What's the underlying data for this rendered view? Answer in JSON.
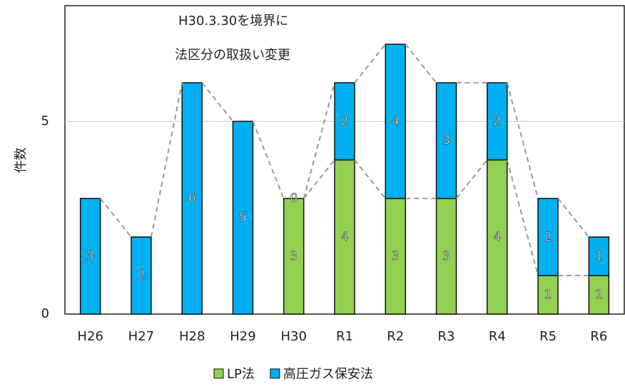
{
  "chart_data": {
    "type": "stacked_bar",
    "annotations": [
      "H30.3.30を境界に",
      "法区分の取扱い変更"
    ],
    "ylabel": "件数",
    "categories": [
      "H26",
      "H27",
      "H28",
      "H29",
      "H30",
      "R1",
      "R2",
      "R3",
      "R4",
      "R5",
      "R6"
    ],
    "series": [
      {
        "name": "LP法",
        "color": "#92d050",
        "values": [
          null,
          null,
          null,
          null,
          3,
          4,
          3,
          3,
          4,
          1,
          1
        ]
      },
      {
        "name": "高圧ガス保安法",
        "color": "#00b0f0",
        "values": [
          3,
          2,
          6,
          5,
          0,
          2,
          4,
          3,
          2,
          2,
          1
        ]
      }
    ],
    "ylim": [
      0,
      8
    ],
    "yticks": [
      0,
      5
    ],
    "grid": true,
    "legend": "bottom"
  }
}
